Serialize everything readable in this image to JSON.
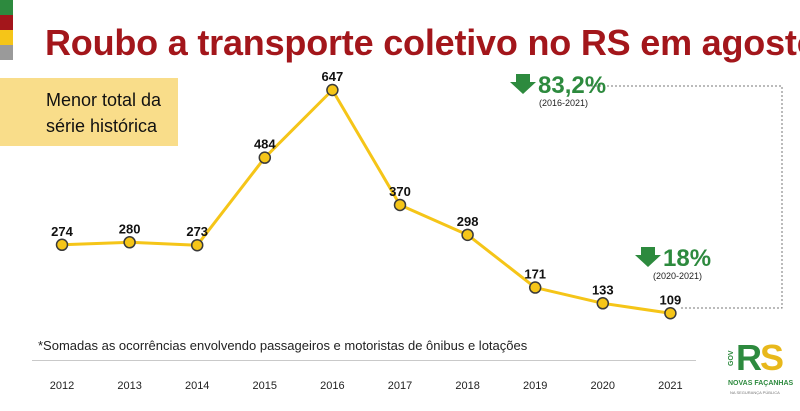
{
  "title": "Roubo a transporte coletivo no RS em agosto",
  "callout": {
    "line1": "Menor total da",
    "line2": "série histórica"
  },
  "footnote": "*Somadas as ocorrências envolvendo passageiros e motoristas de ônibus e lotações",
  "colors": {
    "title": "#a3161b",
    "line": "#f5c518",
    "marker_fill": "#f5c518",
    "marker_stroke": "#3a3a3a",
    "highlight_bg": "#f9dd8a",
    "change_text": "#2d8a3e",
    "stripes": [
      "#2d8a3e",
      "#a3161b",
      "#f5c518",
      "#9a9a9a"
    ]
  },
  "chart_data": {
    "type": "line",
    "title": "Roubo a transporte coletivo no RS em agosto",
    "xlabel": "",
    "ylabel": "",
    "categories": [
      "2012",
      "2013",
      "2014",
      "2015",
      "2016",
      "2017",
      "2018",
      "2019",
      "2020",
      "2021"
    ],
    "values": [
      274,
      280,
      273,
      484,
      647,
      370,
      298,
      171,
      133,
      109
    ],
    "ylim": [
      0,
      700
    ],
    "grid": false,
    "annotations": [
      {
        "label": "83,2%",
        "period": "(2016-2021)",
        "direction": "down"
      },
      {
        "label": "18%",
        "period": "(2020-2021)",
        "direction": "down"
      }
    ]
  },
  "logo": {
    "main": "RS",
    "side": "GOV",
    "line1": "NOVAS FAÇANHAS",
    "line2": "NA SEGURANÇA PÚBLICA"
  }
}
